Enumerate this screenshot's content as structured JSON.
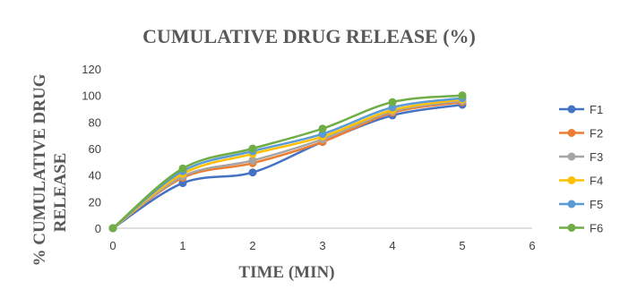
{
  "chart_data": {
    "type": "line",
    "title": "CUMULATIVE DRUG RELEASE (%)",
    "xlabel": "TIME (MIN)",
    "ylabel_line1": "% CUMULATIVE DRUG",
    "ylabel_line2": "RELEASE",
    "xlim": [
      0,
      6
    ],
    "ylim": [
      0,
      120
    ],
    "xticks": [
      0,
      1,
      2,
      3,
      4,
      5,
      6
    ],
    "yticks": [
      0,
      20,
      40,
      60,
      80,
      100,
      120
    ],
    "grid": false,
    "legend_position": "right",
    "x": [
      0,
      1,
      2,
      3,
      4,
      5
    ],
    "series": [
      {
        "name": "F1",
        "color": "#4472C4",
        "values": [
          0,
          34,
          42,
          65,
          85,
          93
        ]
      },
      {
        "name": "F2",
        "color": "#ED7D31",
        "values": [
          0,
          38,
          49,
          65,
          87,
          95
        ]
      },
      {
        "name": "F3",
        "color": "#A5A5A5",
        "values": [
          0,
          39,
          51,
          67,
          88,
          96
        ]
      },
      {
        "name": "F4",
        "color": "#FFC000",
        "values": [
          0,
          41,
          56,
          69,
          89,
          97
        ]
      },
      {
        "name": "F5",
        "color": "#5B9BD5",
        "values": [
          0,
          43,
          58,
          71,
          91,
          98
        ]
      },
      {
        "name": "F6",
        "color": "#70AD47",
        "values": [
          0,
          45,
          60,
          75,
          95,
          100
        ]
      }
    ]
  }
}
